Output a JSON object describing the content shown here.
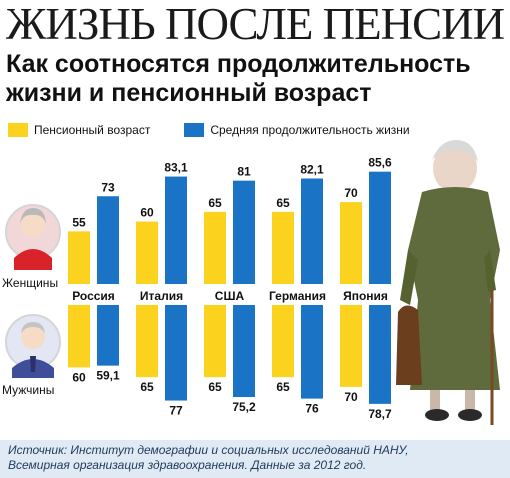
{
  "headline": "ЖИЗНЬ ПОСЛЕ ПЕНСИИ",
  "subtitle_line1": "Как соотносятся продолжительность",
  "subtitle_line2": "жизни и пенсионный возраст",
  "colors": {
    "retirement": "#fbd21e",
    "life": "#1a73c5"
  },
  "groups": {
    "women": "Женщины",
    "men": "Мужчины"
  },
  "source_line1": "Источник: Институт демографии и социальных исследований НАНУ,",
  "source_line2": "Всемирная организация здравоохранения. Данные за 2012 год.",
  "chart_data": {
    "type": "bar",
    "categories": [
      "Россия",
      "Италия",
      "США",
      "Германия",
      "Япония"
    ],
    "series": [
      {
        "name": "Пенсионный возраст",
        "group": "Женщины",
        "values": [
          55,
          60,
          65,
          65,
          70
        ],
        "labels": [
          "55",
          "60",
          "65",
          "65",
          "70"
        ]
      },
      {
        "name": "Средняя продолжительность жизни",
        "group": "Женщины",
        "values": [
          73,
          83.1,
          81,
          82.1,
          85.6
        ],
        "labels": [
          "73",
          "83,1",
          "81",
          "82,1",
          "85,6"
        ]
      },
      {
        "name": "Пенсионный возраст",
        "group": "Мужчины",
        "values": [
          60,
          65,
          65,
          65,
          70
        ],
        "labels": [
          "60",
          "65",
          "65",
          "65",
          "70"
        ]
      },
      {
        "name": "Средняя продолжительность жизни",
        "group": "Мужчины",
        "values": [
          59.1,
          77,
          75.2,
          76,
          78.7
        ],
        "labels": [
          "59,1",
          "77",
          "75,2",
          "76",
          "78,7"
        ]
      }
    ],
    "legend": [
      "Пенсионный возраст",
      "Средняя продолжительность жизни"
    ],
    "legend_position": "top"
  }
}
